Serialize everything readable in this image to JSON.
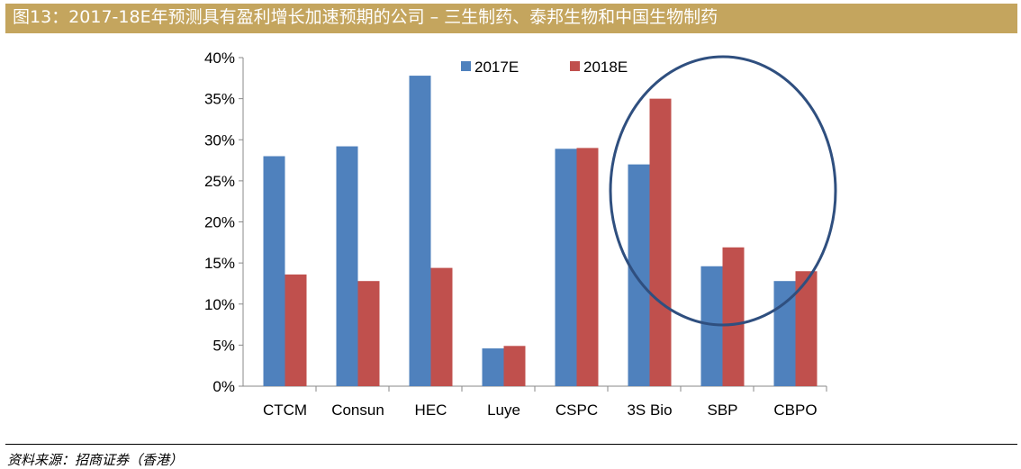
{
  "title": "图13：2017-18E年预测具有盈利增长加速预期的公司 – 三生制药、泰邦生物和中国生物制药",
  "source": "资料来源：招商证券（香港）",
  "chart_data": {
    "type": "bar",
    "categories": [
      "CTCM",
      "Consun",
      "HEC",
      "Luye",
      "CSPC",
      "3S Bio",
      "SBP",
      "CBPO"
    ],
    "series": [
      {
        "name": "2017E",
        "color": "#4f81bd",
        "values": [
          28.0,
          29.2,
          37.8,
          4.6,
          28.9,
          27.0,
          14.6,
          12.8
        ]
      },
      {
        "name": "2018E",
        "color": "#c0504d",
        "values": [
          13.6,
          12.8,
          14.4,
          4.9,
          29.0,
          35.0,
          16.9,
          14.0
        ]
      }
    ],
    "ylim": [
      0,
      40
    ],
    "yticks": [
      "0%",
      "5%",
      "10%",
      "15%",
      "20%",
      "25%",
      "30%",
      "35%",
      "40%"
    ],
    "legend": "top-center",
    "grid": false,
    "annotation": "ellipse highlighting 3S Bio, SBP, CBPO",
    "annotation_color": "#2f4f7f"
  }
}
